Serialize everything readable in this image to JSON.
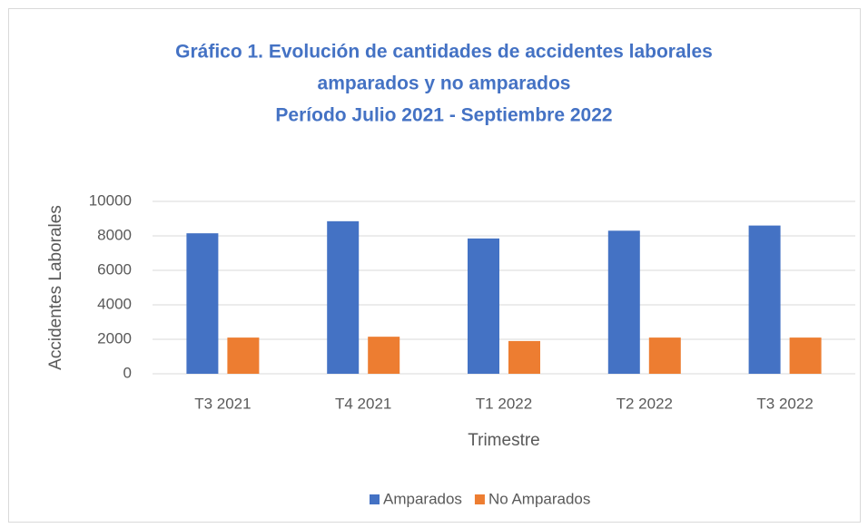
{
  "chart_data": {
    "type": "bar",
    "title": [
      "Gráfico 1. Evolución de cantidades de accidentes laborales",
      "amparados y no amparados",
      "Período Julio 2021 - Septiembre 2022"
    ],
    "x_label": "Trimestre",
    "y_label": "Accidentes Laborales",
    "categories": [
      "T3 2021",
      "T4 2021",
      "T1 2022",
      "T2 2022",
      "T3 2022"
    ],
    "series": [
      {
        "name": "Amparados",
        "color": "#4472c4",
        "values": [
          8150,
          8850,
          7850,
          8300,
          8600
        ]
      },
      {
        "name": "No Amparados",
        "color": "#ed7d31",
        "values": [
          2100,
          2150,
          1900,
          2100,
          2100
        ]
      }
    ],
    "ylim": [
      0,
      10000
    ],
    "yticks": [
      0,
      2000,
      4000,
      6000,
      8000,
      10000
    ],
    "grid": true,
    "legend": "bottom"
  }
}
